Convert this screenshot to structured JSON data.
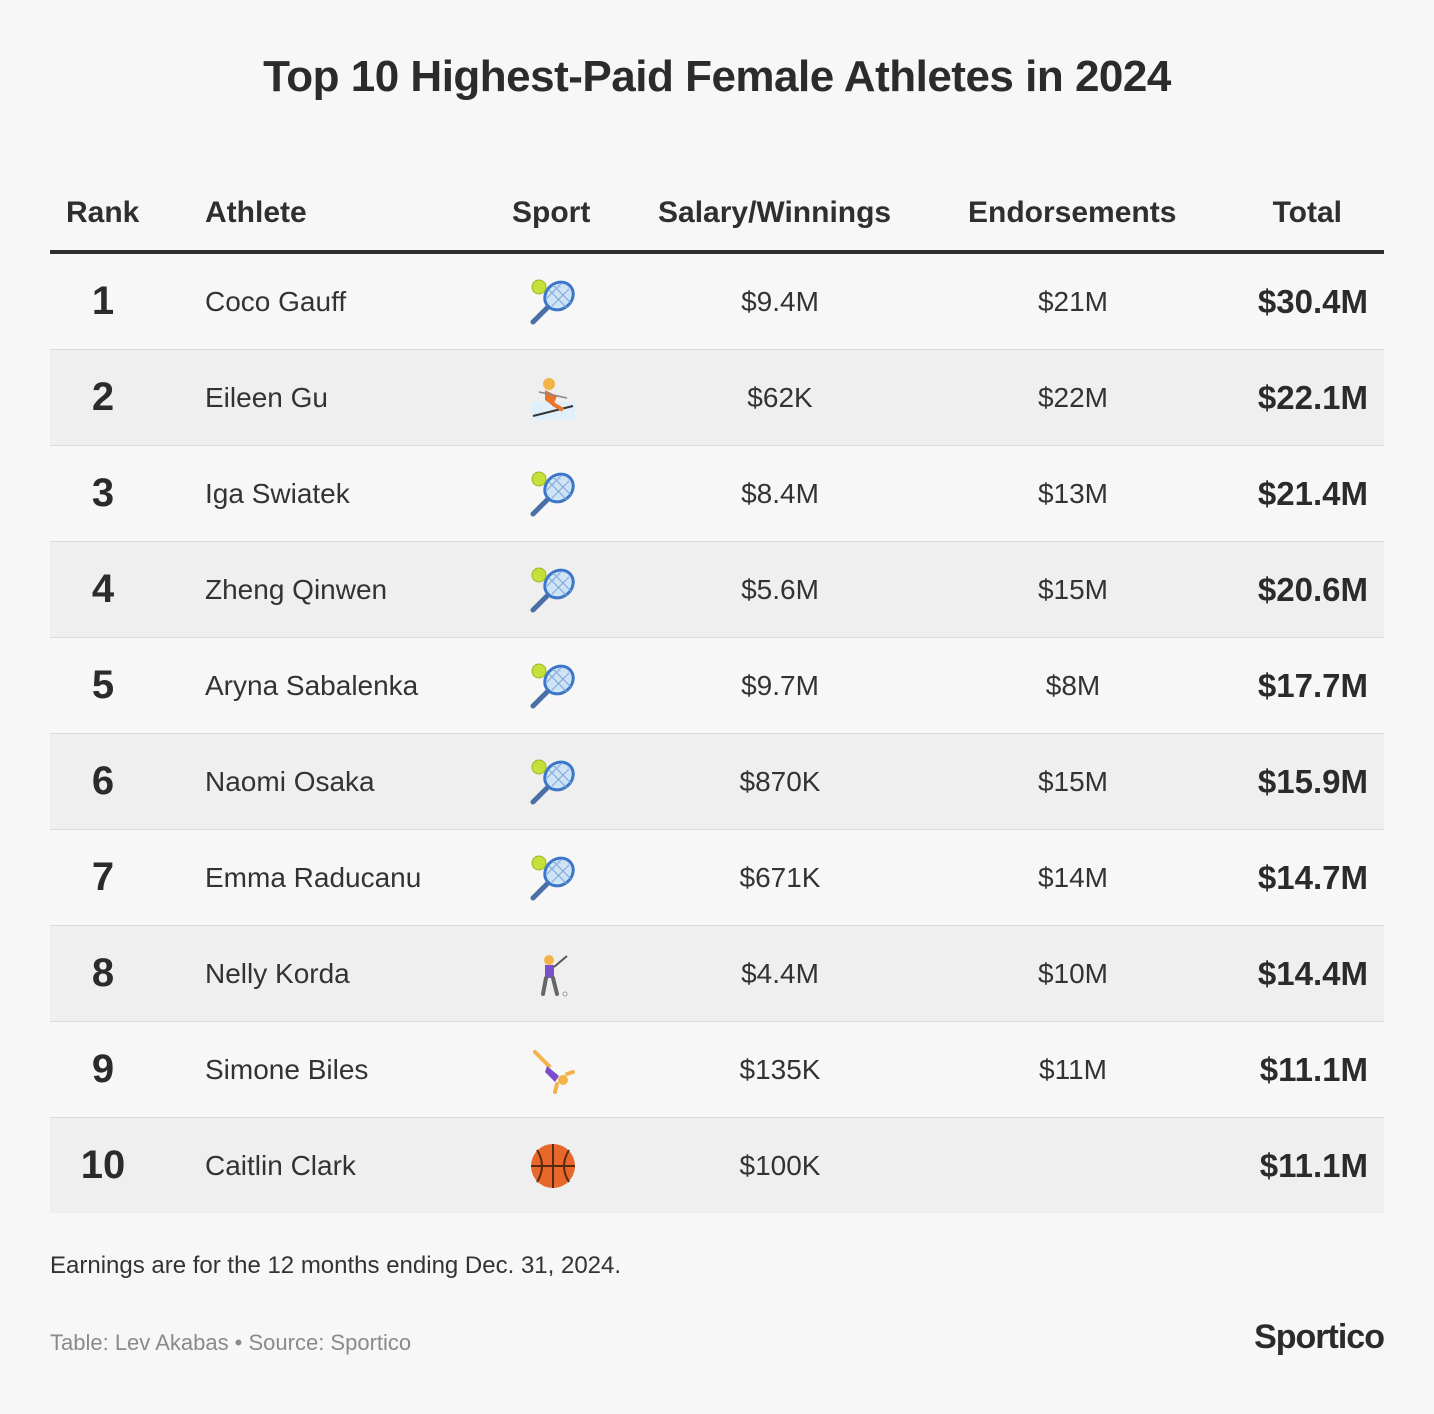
{
  "title": "Top 10 Highest-Paid Female Athletes in 2024",
  "columns": {
    "rank": "Rank",
    "athlete": "Athlete",
    "sport": "Sport",
    "salary": "Salary/Winnings",
    "endorsements": "Endorsements",
    "total": "Total"
  },
  "rows": [
    {
      "rank": "1",
      "athlete": "Coco Gauff",
      "sport_icon": "tennis-icon",
      "salary": "$9.4M",
      "endorsements": "$21M",
      "total": "$30.4M"
    },
    {
      "rank": "2",
      "athlete": "Eileen Gu",
      "sport_icon": "skier-icon",
      "salary": "$62K",
      "endorsements": "$22M",
      "total": "$22.1M"
    },
    {
      "rank": "3",
      "athlete": "Iga Swiatek",
      "sport_icon": "tennis-icon",
      "salary": "$8.4M",
      "endorsements": "$13M",
      "total": "$21.4M"
    },
    {
      "rank": "4",
      "athlete": "Zheng Qinwen",
      "sport_icon": "tennis-icon",
      "salary": "$5.6M",
      "endorsements": "$15M",
      "total": "$20.6M"
    },
    {
      "rank": "5",
      "athlete": "Aryna Sabalenka",
      "sport_icon": "tennis-icon",
      "salary": "$9.7M",
      "endorsements": "$8M",
      "total": "$17.7M"
    },
    {
      "rank": "6",
      "athlete": "Naomi Osaka",
      "sport_icon": "tennis-icon",
      "salary": "$870K",
      "endorsements": "$15M",
      "total": "$15.9M"
    },
    {
      "rank": "7",
      "athlete": "Emma Raducanu",
      "sport_icon": "tennis-icon",
      "salary": "$671K",
      "endorsements": "$14M",
      "total": "$14.7M"
    },
    {
      "rank": "8",
      "athlete": "Nelly Korda",
      "sport_icon": "golfer-icon",
      "salary": "$4.4M",
      "endorsements": "$10M",
      "total": "$14.4M"
    },
    {
      "rank": "9",
      "athlete": "Simone Biles",
      "sport_icon": "gymnast-icon",
      "salary": "$135K",
      "endorsements": "$11M",
      "total": "$11.1M"
    },
    {
      "rank": "10",
      "athlete": "Caitlin Clark",
      "sport_icon": "basketball-icon",
      "salary": "$100K",
      "endorsements": "",
      "total": "$11.1M"
    }
  ],
  "footnote": "Earnings are for the 12 months ending Dec. 31, 2024.",
  "credit": "Table: Lev Akabas • Source: Sportico",
  "brand": "Sportico",
  "colors": {
    "background": "#f7f7f7",
    "row_shade": "#efefef",
    "text": "#2f2f2f",
    "muted": "#8a8a8a"
  },
  "chart_data": {
    "type": "table",
    "title": "Top 10 Highest-Paid Female Athletes in 2024",
    "columns": [
      "Rank",
      "Athlete",
      "Sport",
      "Salary/Winnings",
      "Endorsements",
      "Total"
    ],
    "rows": [
      [
        "1",
        "Coco Gauff",
        "tennis",
        "$9.4M",
        "$21M",
        "$30.4M"
      ],
      [
        "2",
        "Eileen Gu",
        "skiing",
        "$62K",
        "$22M",
        "$22.1M"
      ],
      [
        "3",
        "Iga Swiatek",
        "tennis",
        "$8.4M",
        "$13M",
        "$21.4M"
      ],
      [
        "4",
        "Zheng Qinwen",
        "tennis",
        "$5.6M",
        "$15M",
        "$20.6M"
      ],
      [
        "5",
        "Aryna Sabalenka",
        "tennis",
        "$9.7M",
        "$8M",
        "$17.7M"
      ],
      [
        "6",
        "Naomi Osaka",
        "tennis",
        "$870K",
        "$15M",
        "$15.9M"
      ],
      [
        "7",
        "Emma Raducanu",
        "tennis",
        "$671K",
        "$14M",
        "$14.7M"
      ],
      [
        "8",
        "Nelly Korda",
        "golf",
        "$4.4M",
        "$10M",
        "$14.4M"
      ],
      [
        "9",
        "Simone Biles",
        "gymnastics",
        "$135K",
        "$11M",
        "$11.1M"
      ],
      [
        "10",
        "Caitlin Clark",
        "basketball",
        "$100K",
        "",
        "$11.1M"
      ]
    ]
  }
}
